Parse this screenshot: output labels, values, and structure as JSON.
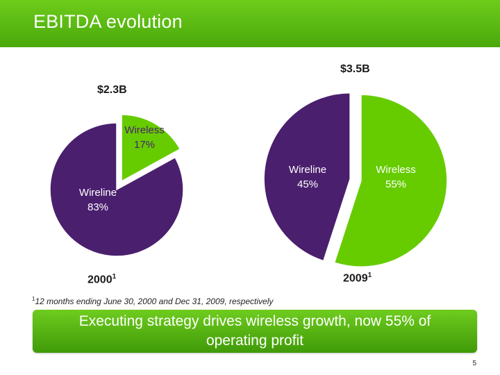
{
  "header": {
    "title": "EBITDA evolution"
  },
  "colors": {
    "wireless": "#66cc00",
    "wireline": "#4a1f6e",
    "header": "#5cb814"
  },
  "chart_data": [
    {
      "type": "pie",
      "year_label": "2000",
      "year_footnote": "1",
      "total_label": "$2.3B",
      "slices": [
        {
          "name": "Wireless",
          "value": 17,
          "label": "17%",
          "exploded": true
        },
        {
          "name": "Wireline",
          "value": 83,
          "label": "83%",
          "exploded": false
        }
      ]
    },
    {
      "type": "pie",
      "year_label": "2009",
      "year_footnote": "1",
      "total_label": "$3.5B",
      "slices": [
        {
          "name": "Wireless",
          "value": 55,
          "label": "55%",
          "exploded": true
        },
        {
          "name": "Wireline",
          "value": 45,
          "label": "45%",
          "exploded": true
        }
      ]
    }
  ],
  "footnote": {
    "marker": "1",
    "text": "12 months ending June 30, 2000 and Dec 31, 2009, respectively"
  },
  "banner": {
    "text": "Executing strategy drives wireless growth, now 55% of operating profit"
  },
  "page_number": "5"
}
